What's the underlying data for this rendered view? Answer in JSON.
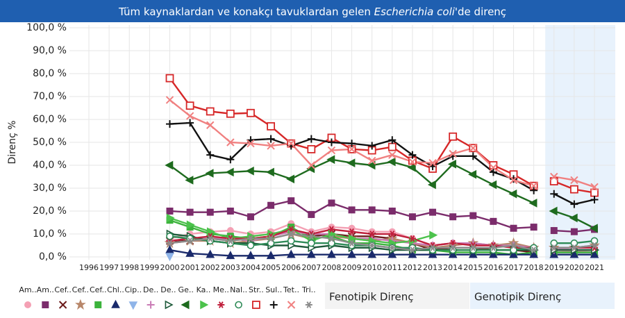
{
  "chart_data": {
    "type": "line",
    "title": [
      "Tüm kaynaklardan ve konakçı tavuklardan gelen ",
      "Escherichia coli",
      "'de direnç"
    ],
    "y_label": "Direnç %",
    "categories": [
      "1996",
      "1997",
      "1998",
      "1999",
      "2000",
      "2001",
      "2002",
      "2003",
      "2004",
      "2005",
      "2006",
      "2007",
      "2008",
      "2009",
      "2010",
      "2011",
      "2012",
      "2013",
      "2014",
      "2015",
      "2016",
      "2017",
      "2018",
      "2019",
      "2020",
      "2021"
    ],
    "panels": [
      {
        "label": "Fenotipik Direnç",
        "from": "1996",
        "to": "2018",
        "color": "#f3f3f3"
      },
      {
        "label": "Genotipik Direnç",
        "from": "2019",
        "to": "2021",
        "color": "#e8f2fc"
      }
    ],
    "ylim": [
      0,
      100
    ],
    "yticks": [
      {
        "value": 0,
        "label": "0,0 %"
      },
      {
        "value": 10,
        "label": "10,0 %"
      },
      {
        "value": 20,
        "label": "20,0 %"
      },
      {
        "value": 30,
        "label": "30,0 %"
      },
      {
        "value": 40,
        "label": "40,0 %"
      },
      {
        "value": 50,
        "label": "50,0 %"
      },
      {
        "value": 60,
        "label": "60,0 %"
      },
      {
        "value": 70,
        "label": "70,0 %"
      },
      {
        "value": 80,
        "label": "80,0 %"
      },
      {
        "value": 90,
        "label": "90,0 %"
      },
      {
        "value": 100,
        "label": "100,0 %"
      }
    ],
    "grid": true,
    "legend": "bottom-left",
    "series": [
      {
        "name": "Am..",
        "color": "#f4a0b4",
        "marker": "circle",
        "values": [
          null,
          null,
          null,
          null,
          8,
          10,
          11,
          11.5,
          10,
          11,
          14.5,
          11,
          13,
          12.5,
          11,
          11,
          8,
          5,
          6,
          5.5,
          5,
          4,
          4,
          3,
          2.5,
          3
        ]
      },
      {
        "name": "Am..",
        "color": "#7b2c6b",
        "marker": "square",
        "values": [
          null,
          null,
          null,
          null,
          20,
          19.5,
          19.5,
          20,
          17.5,
          22.5,
          24.5,
          18.5,
          23.5,
          20.5,
          20.5,
          20,
          17.5,
          19.5,
          17.5,
          18,
          15.5,
          12.5,
          13,
          11.5,
          11,
          12
        ]
      },
      {
        "name": "Cef..",
        "color": "#6b1a1a",
        "marker": "x",
        "values": [
          null,
          null,
          null,
          null,
          7,
          7,
          8,
          8,
          7,
          9,
          12,
          9,
          10,
          9,
          9,
          8,
          6,
          3,
          4,
          4,
          3,
          3,
          2,
          2,
          2,
          2
        ]
      },
      {
        "name": "Cef..",
        "color": "#b8876a",
        "marker": "star",
        "values": [
          null,
          null,
          null,
          null,
          6,
          7,
          7,
          6,
          7,
          8,
          10,
          8,
          9,
          8,
          7,
          8,
          6,
          4,
          5,
          6,
          5,
          6,
          4,
          4,
          4,
          5
        ]
      },
      {
        "name": "Cef..",
        "color": "#3cb33c",
        "marker": "square",
        "values": [
          null,
          null,
          null,
          null,
          16,
          13,
          10,
          9,
          8,
          9,
          13,
          8,
          9,
          6,
          6,
          5,
          3,
          3,
          2,
          2,
          2,
          1,
          2,
          2,
          2,
          2
        ]
      },
      {
        "name": "Chl..",
        "color": "#1a2a6b",
        "marker": "triangle",
        "values": [
          null,
          null,
          null,
          null,
          3,
          1.5,
          1,
          0.5,
          0.5,
          0.5,
          1,
          1,
          1,
          1,
          1,
          1,
          1,
          1,
          1,
          1,
          1,
          1,
          1,
          1,
          1,
          1
        ]
      },
      {
        "name": "Cip..",
        "color": "#8fb4e8",
        "marker": "tridown",
        "values": [
          null,
          null,
          null,
          null,
          0.3,
          null,
          null,
          null,
          null,
          null,
          null,
          null,
          null,
          null,
          null,
          null,
          null,
          null,
          null,
          null,
          null,
          null,
          null,
          null,
          null,
          null
        ]
      },
      {
        "name": "De..",
        "color": "#c97bb5",
        "marker": "plus",
        "values": [
          null,
          null,
          null,
          null,
          7,
          8,
          8,
          8,
          7,
          9,
          11,
          10,
          10,
          8,
          8,
          7,
          6,
          5,
          6,
          6,
          5,
          5,
          4,
          3,
          4,
          5
        ]
      },
      {
        "name": "De..",
        "color": "#1e5a3a",
        "marker": "triright-open",
        "values": [
          null,
          null,
          null,
          null,
          10,
          9,
          7,
          6,
          6,
          5,
          5,
          4,
          5,
          4,
          4,
          3,
          3,
          3,
          3,
          3,
          3,
          3,
          3,
          3,
          3,
          3
        ]
      },
      {
        "name": "Ge..",
        "color": "#1e6b1e",
        "marker": "trileft",
        "values": [
          null,
          null,
          null,
          null,
          40,
          33.5,
          36.5,
          37,
          37.5,
          37,
          34,
          38.5,
          42.5,
          41,
          40,
          41.5,
          39,
          31.5,
          40.5,
          36,
          31.5,
          27.5,
          23.5,
          20,
          17,
          12.5
        ]
      },
      {
        "name": "Ka..",
        "color": "#4cc24c",
        "marker": "triright",
        "values": [
          null,
          null,
          null,
          null,
          17,
          14,
          11,
          8,
          9,
          10,
          12,
          7,
          10,
          8,
          7,
          6,
          7,
          9.5,
          null,
          null,
          null,
          null,
          null,
          null,
          null,
          null
        ]
      },
      {
        "name": "Me..",
        "color": "#c0203c",
        "marker": "asterisk",
        "values": [
          null,
          null,
          null,
          null,
          7,
          8,
          9,
          8,
          8,
          9,
          12,
          10,
          12,
          11,
          10,
          10,
          8,
          5,
          6,
          5,
          5,
          4,
          4,
          4,
          4,
          4
        ]
      },
      {
        "name": "Nal..",
        "color": "#2e8b57",
        "marker": "circle-open",
        "values": [
          null,
          null,
          null,
          null,
          9,
          8,
          7,
          6,
          5,
          6,
          7,
          6,
          6,
          5,
          5,
          4,
          4,
          3,
          3,
          3,
          3,
          3,
          4,
          6,
          6,
          7
        ]
      },
      {
        "name": "Str..",
        "color": "#d62728",
        "marker": "square-open",
        "values": [
          null,
          null,
          null,
          null,
          78,
          66,
          63.5,
          62.5,
          62.8,
          57,
          49.5,
          47,
          52,
          47,
          46.5,
          48,
          42,
          38.5,
          52.5,
          47.5,
          40,
          36,
          31,
          33,
          29.5,
          28
        ]
      },
      {
        "name": "Sul..",
        "color": "#111111",
        "marker": "plus",
        "values": [
          null,
          null,
          null,
          null,
          58,
          58.5,
          44.5,
          42.5,
          51,
          51.5,
          48.5,
          51.5,
          50,
          49.5,
          48.5,
          51,
          44.5,
          39.5,
          44,
          44,
          37,
          34,
          29,
          27.5,
          23,
          25
        ]
      },
      {
        "name": "Tet..",
        "color": "#f08080",
        "marker": "x",
        "values": [
          null,
          null,
          null,
          null,
          68.5,
          61.5,
          57.5,
          50,
          49.5,
          48.5,
          49.5,
          40,
          46.5,
          47,
          42,
          44.5,
          41.5,
          41,
          45,
          47.5,
          39,
          33.5,
          31,
          35,
          33.5,
          30.5
        ]
      },
      {
        "name": "Tri..",
        "color": "#8c8c8c",
        "marker": "asterisk",
        "values": [
          null,
          null,
          null,
          null,
          6,
          7,
          8,
          7,
          8,
          8,
          10,
          9,
          8,
          6,
          5,
          4,
          3,
          4,
          4,
          4,
          4,
          5,
          3,
          4,
          4,
          5
        ]
      }
    ]
  }
}
